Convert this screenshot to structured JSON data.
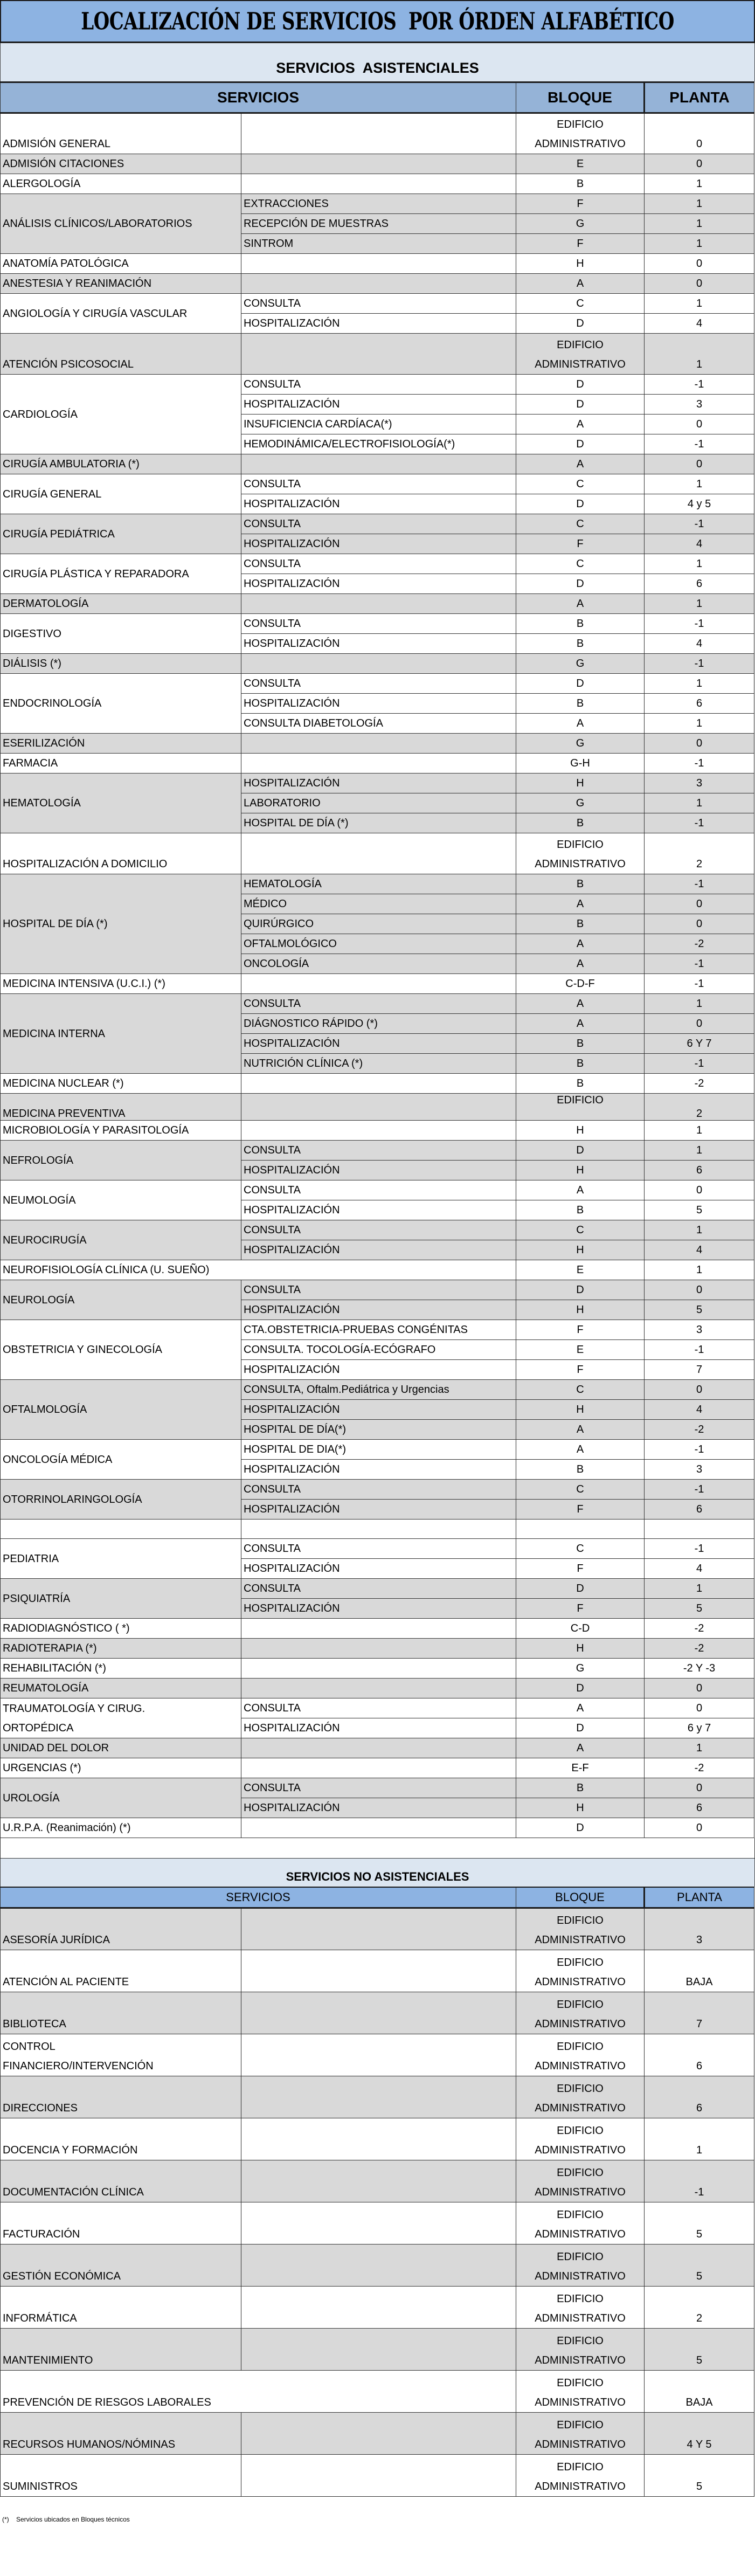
{
  "title": "LOCALIZACIÓN DE SERVICIOS  POR ÓRDEN ALFABÉTICO",
  "colors": {
    "title_bg": "#8db3e2",
    "section_bg": "#dce6f1",
    "header_bg": "#95b3d7",
    "row_shade": "#d9d9d9"
  },
  "asist": {
    "section_title": "SERVICIOS  ASISTENCIALES",
    "headers": {
      "servicios": "SERVICIOS",
      "bloque": "BLOQUE",
      "planta": "PLANTA"
    },
    "rows": [
      {
        "name": "ADMISIÓN GENERAL",
        "bloque": "EDIFICIO\nADMINISTRATIVO",
        "planta": "0",
        "shaded": false
      },
      {
        "name": "ADMISIÓN CITACIONES",
        "bloque": "E",
        "planta": "0",
        "shaded": true
      },
      {
        "name": "ALERGOLOGÍA",
        "bloque": "B",
        "planta": "1",
        "shaded": false
      },
      {
        "name": "ANÁLISIS CLÍNICOS/LABORATORIOS",
        "shaded": true,
        "subs": [
          {
            "label": "EXTRACCIONES",
            "bloque": "F",
            "planta": "1"
          },
          {
            "label": "RECEPCIÓN DE MUESTRAS",
            "bloque": "G",
            "planta": "1"
          },
          {
            "label": "SINTROM",
            "bloque": "F",
            "planta": "1"
          }
        ]
      },
      {
        "name": "ANATOMÍA PATOLÓGICA",
        "bloque": "H",
        "planta": "0",
        "shaded": false
      },
      {
        "name": "ANESTESIA Y REANIMACIÓN",
        "bloque": "A",
        "planta": "0",
        "shaded": true
      },
      {
        "name": "ANGIOLOGÍA Y CIRUGÍA VASCULAR",
        "shaded": false,
        "subs": [
          {
            "label": "CONSULTA",
            "bloque": "C",
            "planta": "1"
          },
          {
            "label": "HOSPITALIZACIÓN",
            "bloque": "D",
            "planta": "4"
          }
        ]
      },
      {
        "name": "ATENCIÓN PSICOSOCIAL",
        "bloque": "EDIFICIO\nADMINISTRATIVO",
        "planta": "1",
        "shaded": true
      },
      {
        "name": "CARDIOLOGÍA",
        "shaded": false,
        "subs": [
          {
            "label": "CONSULTA",
            "bloque": "D",
            "planta": "-1"
          },
          {
            "label": "HOSPITALIZACIÓN",
            "bloque": "D",
            "planta": "3"
          },
          {
            "label": " INSUFICIENCIA CARDÍACA(*)",
            "bloque": "A",
            "planta": "0"
          },
          {
            "label": "HEMODINÁMICA/ELECTROFISIOLOGÍA(*)",
            "bloque": "D",
            "planta": "-1"
          }
        ]
      },
      {
        "name": "CIRUGÍA AMBULATORIA        (*)",
        "bloque": "A",
        "planta": "0",
        "shaded": true
      },
      {
        "name": "CIRUGÍA GENERAL",
        "shaded": false,
        "subs": [
          {
            "label": "CONSULTA",
            "bloque": "C",
            "planta": "1"
          },
          {
            "label": "HOSPITALIZACIÓN",
            "bloque": "D",
            "planta": "4 y 5"
          }
        ]
      },
      {
        "name": "CIRUGÍA PEDIÁTRICA",
        "shaded": true,
        "subs": [
          {
            "label": "CONSULTA",
            "bloque": "C",
            "planta": "-1"
          },
          {
            "label": "HOSPITALIZACIÓN",
            "bloque": "F",
            "planta": "4"
          }
        ]
      },
      {
        "name": "CIRUGÍA PLÁSTICA Y REPARADORA",
        "shaded": false,
        "subs": [
          {
            "label": "CONSULTA",
            "bloque": "C",
            "planta": "1"
          },
          {
            "label": "HOSPITALIZACIÓN",
            "bloque": "D",
            "planta": "6"
          }
        ]
      },
      {
        "name": "DERMATOLOGÍA",
        "bloque": "A",
        "planta": "1",
        "shaded": true
      },
      {
        "name": "DIGESTIVO",
        "shaded": false,
        "subs": [
          {
            "label": "CONSULTA",
            "bloque": "B",
            "planta": "-1"
          },
          {
            "label": "HOSPITALIZACIÓN",
            "bloque": "B",
            "planta": "4"
          }
        ]
      },
      {
        "name": "DIÁLISIS     (*)",
        "bloque": "G",
        "planta": "-1",
        "shaded": true
      },
      {
        "name": "ENDOCRINOLOGÍA",
        "shaded": false,
        "subs": [
          {
            "label": "CONSULTA",
            "bloque": "D",
            "planta": "1"
          },
          {
            "label": "HOSPITALIZACIÓN",
            "bloque": "B",
            "planta": "6"
          },
          {
            "label": "CONSULTA DIABETOLOGÍA",
            "bloque": "A",
            "planta": "1"
          }
        ]
      },
      {
        "name": "ESERILIZACIÓN",
        "bloque": "G",
        "planta": "0",
        "shaded": true
      },
      {
        "name": "FARMACIA",
        "bloque": "G-H",
        "planta": "-1",
        "shaded": false
      },
      {
        "name": "HEMATOLOGÍA",
        "shaded": true,
        "subs": [
          {
            "label": "HOSPITALIZACIÓN",
            "bloque": "H",
            "planta": "3"
          },
          {
            "label": "LABORATORIO",
            "bloque": "G",
            "planta": "1"
          },
          {
            "label": "HOSPITAL DE DÍA (*)",
            "bloque": "B",
            "planta": "-1"
          }
        ]
      },
      {
        "name": "HOSPITALIZACIÓN A DOMICILIO",
        "bloque": "EDIFICIO\nADMINISTRATIVO",
        "planta": "2",
        "shaded": false
      },
      {
        "name": "HOSPITAL DE DÍA     (*)",
        "shaded": true,
        "subs": [
          {
            "label": "HEMATOLOGÍA",
            "bloque": "B",
            "planta": "-1"
          },
          {
            "label": "MÉDICO",
            "bloque": "A",
            "planta": "0"
          },
          {
            "label": "QUIRÚRGICO",
            "bloque": "B",
            "planta": "0"
          },
          {
            "label": "OFTALMOLÓGICO",
            "bloque": "A",
            "planta": "-2"
          },
          {
            "label": "ONCOLOGÍA",
            "bloque": "A",
            "planta": "-1"
          }
        ]
      },
      {
        "name": "MEDICINA INTENSIVA   (U.C.I.)      (*)",
        "bloque": "C-D-F",
        "planta": "-1",
        "shaded": false
      },
      {
        "name": "MEDICINA INTERNA",
        "shaded": true,
        "subs": [
          {
            "label": "CONSULTA",
            "bloque": "A",
            "planta": "1"
          },
          {
            "label": "DIÁGNOSTICO RÁPIDO (*)",
            "bloque": "A",
            "planta": "0"
          },
          {
            "label": "HOSPITALIZACIÓN",
            "bloque": "B",
            "planta": "6 Y 7"
          },
          {
            "label": "NUTRICIÓN CLÍNICA (*)",
            "bloque": "B",
            "planta": "-1"
          }
        ]
      },
      {
        "name": "MEDICINA NUCLEAR          (*)",
        "bloque": "B",
        "planta": "-2",
        "shaded": false
      },
      {
        "name": "MEDICINA PREVENTIVA",
        "bloque": "EDIFICIO",
        "planta": "2",
        "shaded": true
      },
      {
        "name": "MICROBIOLOGÍA Y PARASITOLOGÍA",
        "bloque": "H",
        "planta": "1",
        "shaded": false
      },
      {
        "name": "NEFROLOGÍA",
        "shaded": true,
        "subs": [
          {
            "label": "CONSULTA",
            "bloque": "D",
            "planta": "1"
          },
          {
            "label": "HOSPITALIZACIÓN",
            "bloque": "H",
            "planta": "6"
          }
        ]
      },
      {
        "name": "NEUMOLOGÍA",
        "shaded": false,
        "subs": [
          {
            "label": "CONSULTA",
            "bloque": "A",
            "planta": "0"
          },
          {
            "label": "HOSPITALIZACIÓN",
            "bloque": "B",
            "planta": "5"
          }
        ]
      },
      {
        "name": "NEUROCIRUGÍA",
        "shaded": true,
        "subs": [
          {
            "label": "CONSULTA",
            "bloque": "C",
            "planta": "1"
          },
          {
            "label": "HOSPITALIZACIÓN",
            "bloque": "H",
            "planta": "4"
          }
        ]
      },
      {
        "name": "NEUROFISIOLOGÍA CLÍNICA (U. SUEÑO)",
        "bloque": "E",
        "planta": "1",
        "shaded": false
      },
      {
        "name": "NEUROLOGÍA",
        "shaded": true,
        "subs": [
          {
            "label": "CONSULTA",
            "bloque": "D",
            "planta": "0"
          },
          {
            "label": "HOSPITALIZACIÓN",
            "bloque": "H",
            "planta": "5"
          }
        ]
      },
      {
        "name": "OBSTETRICIA Y GINECOLOGÍA",
        "shaded": false,
        "subs": [
          {
            "label": "CTA.OBSTETRICIA-PRUEBAS CONGÉNITAS",
            "bloque": "F",
            "planta": "3"
          },
          {
            "label": "CONSULTA. TOCOLOGÍA-ECÓGRAFO",
            "bloque": "E",
            "planta": "-1"
          },
          {
            "label": "HOSPITALIZACIÓN",
            "bloque": "F",
            "planta": "7"
          }
        ]
      },
      {
        "name": "OFTALMOLOGÍA",
        "shaded": true,
        "subs": [
          {
            "label": "CONSULTA, Oftalm.Pediátrica y Urgencias",
            "bloque": "C",
            "planta": "0"
          },
          {
            "label": "HOSPITALIZACIÓN",
            "bloque": "H",
            "planta": "4"
          },
          {
            "label": "HOSPITAL DE DÍA(*)",
            "bloque": "A",
            "planta": "-2"
          }
        ]
      },
      {
        "name": "ONCOLOGÍA MÉDICA",
        "shaded": false,
        "subs": [
          {
            "label": "HOSPITAL DE DIA(*)",
            "bloque": "A",
            "planta": "-1"
          },
          {
            "label": "HOSPITALIZACIÓN",
            "bloque": "B",
            "planta": "3"
          }
        ]
      },
      {
        "name": "OTORRINOLARINGOLOGÍA",
        "shaded": true,
        "subs": [
          {
            "label": "CONSULTA",
            "bloque": "C",
            "planta": "-1"
          },
          {
            "label": "HOSPITALIZACIÓN",
            "bloque": "F",
            "planta": "6"
          }
        ]
      },
      {
        "name": "",
        "bloque": "",
        "planta": "",
        "shaded": false
      },
      {
        "name": "PEDIATRIA",
        "shaded": false,
        "subs": [
          {
            "label": "CONSULTA",
            "bloque": "C",
            "planta": "-1"
          },
          {
            "label": "HOSPITALIZACIÓN",
            "bloque": "F",
            "planta": "4"
          }
        ]
      },
      {
        "name": "PSIQUIATRÍA",
        "shaded": true,
        "subs": [
          {
            "label": "CONSULTA",
            "bloque": "D",
            "planta": "1"
          },
          {
            "label": "HOSPITALIZACIÓN",
            "bloque": "F",
            "planta": "5"
          }
        ]
      },
      {
        "name": "RADIODIAGNÓSTICO ( *)",
        "bloque": "C-D",
        "planta": "-2",
        "shaded": false
      },
      {
        "name": "RADIOTERAPIA (*)",
        "bloque": "H",
        "planta": "-2",
        "shaded": true
      },
      {
        "name": "REHABILITACIÓN (*)",
        "bloque": "G",
        "planta": "-2 Y -3",
        "shaded": false
      },
      {
        "name": "REUMATOLOGÍA",
        "bloque": "D",
        "planta": "0",
        "shaded": true
      },
      {
        "name": "TRAUMATOLOGÍA Y CIRUG.\nORTOPÉDICA",
        "shaded": false,
        "subs": [
          {
            "label": "CONSULTA",
            "bloque": "A",
            "planta": "0"
          },
          {
            "label": "HOSPITALIZACIÓN",
            "bloque": "D",
            "planta": "6  y  7"
          }
        ]
      },
      {
        "name": "UNIDAD DEL DOLOR",
        "bloque": "A",
        "planta": "1",
        "shaded": true
      },
      {
        "name": "URGENCIAS  (*)",
        "bloque": "E-F",
        "planta": "-2",
        "shaded": false
      },
      {
        "name": "UROLOGÍA",
        "shaded": true,
        "subs": [
          {
            "label": "CONSULTA",
            "bloque": "B",
            "planta": "0"
          },
          {
            "label": "HOSPITALIZACIÓN",
            "bloque": "H",
            "planta": "6"
          }
        ]
      },
      {
        "name": "U.R.P.A. (Reanimación)     (*)",
        "bloque": "D",
        "planta": "0",
        "shaded": false
      }
    ]
  },
  "noasist": {
    "section_title": "SERVICIOS NO ASISTENCIALES",
    "headers": {
      "servicios": "SERVICIOS",
      "bloque": "BLOQUE",
      "planta": "PLANTA"
    },
    "rows": [
      {
        "name": "ASESORÍA JURÍDICA",
        "bloque": "EDIFICIO\nADMINISTRATIVO",
        "planta": "3",
        "shaded": true
      },
      {
        "name": "ATENCIÓN AL PACIENTE",
        "bloque": "EDIFICIO\nADMINISTRATIVO",
        "planta": "BAJA",
        "shaded": false
      },
      {
        "name": "BIBLIOTECA",
        "bloque": "EDIFICIO\nADMINISTRATIVO",
        "planta": "7",
        "shaded": true
      },
      {
        "name": "CONTROL\nFINANCIERO/INTERVENCIÓN",
        "bloque": "EDIFICIO\nADMINISTRATIVO",
        "planta": "6",
        "shaded": false
      },
      {
        "name": "DIRECCIONES",
        "bloque": "EDIFICIO\nADMINISTRATIVO",
        "planta": "6",
        "shaded": true
      },
      {
        "name": "DOCENCIA Y FORMACIÓN",
        "bloque": "EDIFICIO\nADMINISTRATIVO",
        "planta": "1",
        "shaded": false
      },
      {
        "name": "DOCUMENTACIÓN CLÍNICA",
        "bloque": "EDIFICIO\nADMINISTRATIVO",
        "planta": "-1",
        "shaded": true
      },
      {
        "name": "FACTURACIÓN",
        "bloque": "EDIFICIO\nADMINISTRATIVO",
        "planta": "5",
        "shaded": false
      },
      {
        "name": "GESTIÓN ECONÓMICA",
        "bloque": "EDIFICIO\nADMINISTRATIVO",
        "planta": "5",
        "shaded": true
      },
      {
        "name": "INFORMÁTICA",
        "bloque": "EDIFICIO\nADMINISTRATIVO",
        "planta": "2",
        "shaded": false
      },
      {
        "name": "MANTENIMIENTO",
        "bloque": "EDIFICIO\nADMINISTRATIVO",
        "planta": "5",
        "shaded": true
      },
      {
        "name": "PREVENCIÓN DE RIESGOS LABORALES",
        "bloque": "EDIFICIO\nADMINISTRATIVO",
        "planta": "BAJA",
        "shaded": false
      },
      {
        "name": "RECURSOS HUMANOS/NÓMINAS",
        "bloque": "EDIFICIO\nADMINISTRATIVO",
        "planta": "4 Y 5",
        "shaded": true
      },
      {
        "name": "SUMINISTROS",
        "bloque": "EDIFICIO\nADMINISTRATIVO",
        "planta": "5",
        "shaded": false
      }
    ]
  },
  "footnote": "(*)    Servicios ubicados en Bloques técnicos"
}
